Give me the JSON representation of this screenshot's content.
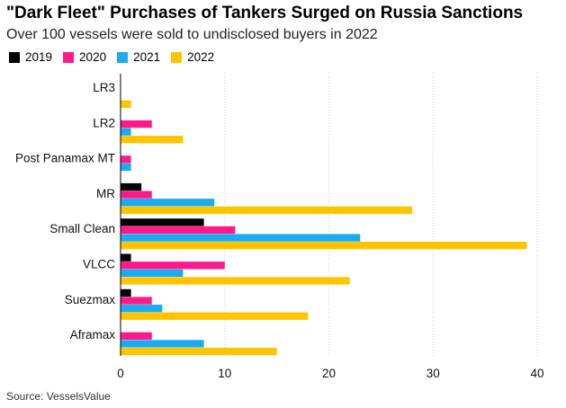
{
  "title": "\"Dark Fleet\" Purchases of Tankers Surged on Russia Sanctions",
  "subtitle": "Over 100 vessels were sold to undisclosed buyers in 2022",
  "source": "Source: VesselsValue",
  "chart_data": {
    "type": "bar",
    "orientation": "horizontal",
    "categories": [
      "LR3",
      "LR2",
      "Post Panamax MT",
      "MR",
      "Small Clean",
      "VLCC",
      "Suezmax",
      "Aframax"
    ],
    "series": [
      {
        "name": "2019",
        "color": "#000000",
        "values": [
          0,
          0,
          0,
          2,
          8,
          1,
          1,
          0
        ]
      },
      {
        "name": "2020",
        "color": "#ff1a8c",
        "values": [
          0,
          3,
          1,
          3,
          11,
          10,
          3,
          3
        ]
      },
      {
        "name": "2021",
        "color": "#1aabf0",
        "values": [
          0,
          1,
          1,
          9,
          23,
          6,
          4,
          8
        ]
      },
      {
        "name": "2022",
        "color": "#ffc400",
        "values": [
          1,
          6,
          0,
          28,
          39,
          22,
          18,
          15
        ]
      }
    ],
    "xlim": [
      0,
      40
    ],
    "xticks": [
      0,
      10,
      20,
      30,
      40
    ],
    "legend_position": "top-left",
    "grid": true
  }
}
